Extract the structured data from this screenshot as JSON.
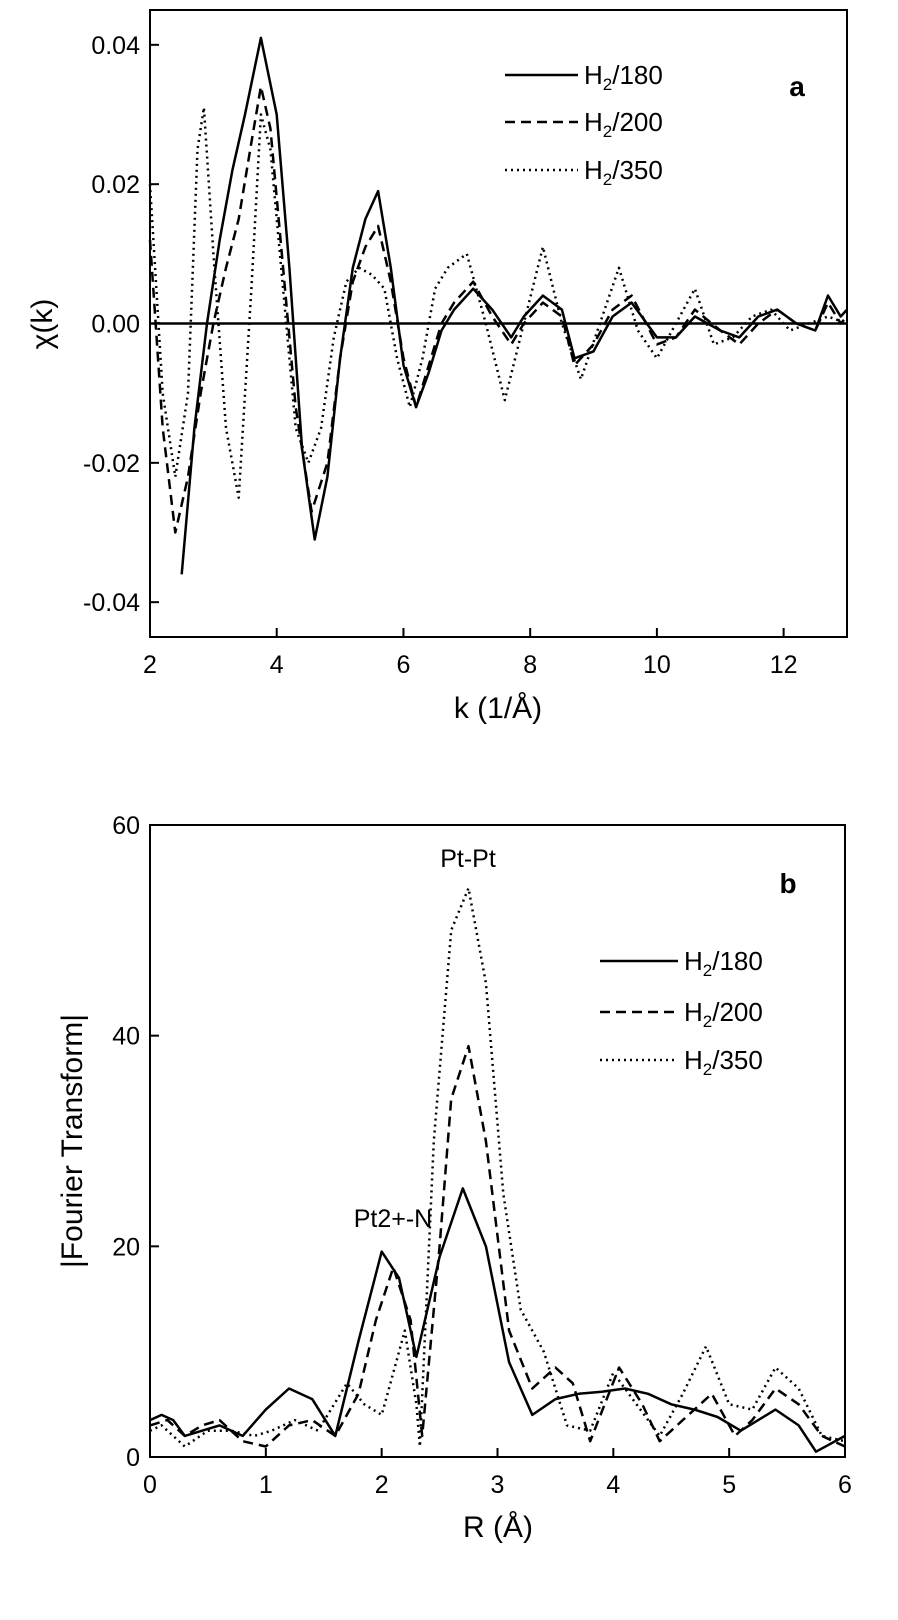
{
  "chart_data": [
    {
      "panel": "a",
      "type": "line",
      "xlabel": "k (1/Å)",
      "ylabel": "χ(k)",
      "xlim": [
        2,
        13
      ],
      "ylim": [
        -0.045,
        0.045
      ],
      "xticks": [
        2,
        4,
        6,
        8,
        10,
        12
      ],
      "xtick_labels": [
        "2",
        "4",
        "6",
        "8",
        "10",
        "12"
      ],
      "yticks": [
        -0.04,
        -0.02,
        0.0,
        0.02,
        0.04
      ],
      "ytick_labels": [
        "-0.04",
        "-0.02",
        "0.00",
        "0.02",
        "0.04"
      ],
      "legend": [
        "H2/180",
        "H2/200",
        "H2/350"
      ],
      "legend_placement": "top-right",
      "grid": false,
      "baseline": 0,
      "series": [
        {
          "name": "H2/180",
          "style": "solid",
          "x": [
            2.5,
            2.7,
            2.9,
            3.1,
            3.3,
            3.5,
            3.75,
            4.0,
            4.2,
            4.4,
            4.6,
            4.8,
            5.0,
            5.2,
            5.4,
            5.6,
            5.8,
            6.0,
            6.2,
            6.4,
            6.6,
            6.8,
            7.1,
            7.4,
            7.7,
            7.9,
            8.2,
            8.5,
            8.7,
            9.0,
            9.3,
            9.6,
            10.0,
            10.3,
            10.6,
            11.0,
            11.3,
            11.6,
            11.9,
            12.2,
            12.5,
            12.7,
            12.9,
            13.0
          ],
          "y": [
            -0.036,
            -0.015,
            0.0,
            0.012,
            0.022,
            0.03,
            0.041,
            0.03,
            0.008,
            -0.018,
            -0.031,
            -0.022,
            -0.005,
            0.008,
            0.015,
            0.019,
            0.008,
            -0.006,
            -0.012,
            -0.007,
            -0.001,
            0.002,
            0.005,
            0.002,
            -0.002,
            0.001,
            0.004,
            0.002,
            -0.005,
            -0.004,
            0.001,
            0.003,
            -0.002,
            -0.002,
            0.001,
            -0.001,
            -0.002,
            0.001,
            0.002,
            0.0,
            -0.001,
            0.004,
            0.001,
            0.002
          ]
        },
        {
          "name": "H2/200",
          "style": "dashed",
          "x": [
            2.0,
            2.2,
            2.4,
            2.6,
            2.8,
            3.0,
            3.2,
            3.4,
            3.6,
            3.75,
            3.9,
            4.1,
            4.3,
            4.55,
            4.8,
            5.0,
            5.2,
            5.4,
            5.6,
            5.8,
            6.0,
            6.2,
            6.4,
            6.6,
            6.8,
            7.1,
            7.4,
            7.7,
            7.9,
            8.2,
            8.5,
            8.7,
            9.0,
            9.3,
            9.6,
            10.0,
            10.3,
            10.6,
            11.0,
            11.3,
            11.6,
            11.9,
            12.2,
            12.5,
            12.7,
            12.9,
            13.0
          ],
          "y": [
            0.012,
            -0.015,
            -0.03,
            -0.022,
            -0.01,
            0.0,
            0.008,
            0.015,
            0.026,
            0.034,
            0.028,
            0.008,
            -0.012,
            -0.027,
            -0.02,
            -0.005,
            0.006,
            0.011,
            0.014,
            0.006,
            -0.005,
            -0.012,
            -0.006,
            0.0,
            0.003,
            0.006,
            0.001,
            -0.003,
            0.0,
            0.003,
            0.001,
            -0.006,
            -0.003,
            0.002,
            0.004,
            -0.003,
            -0.002,
            0.002,
            -0.001,
            -0.003,
            0.0,
            0.002,
            0.0,
            -0.001,
            0.003,
            0.0,
            0.001
          ]
        },
        {
          "name": "H2/350",
          "style": "dotted",
          "x": [
            2.0,
            2.2,
            2.4,
            2.6,
            2.75,
            2.85,
            3.0,
            3.2,
            3.4,
            3.6,
            3.75,
            3.9,
            4.1,
            4.3,
            4.5,
            4.7,
            4.9,
            5.1,
            5.3,
            5.5,
            5.7,
            5.9,
            6.1,
            6.3,
            6.5,
            6.7,
            7.0,
            7.3,
            7.6,
            7.9,
            8.2,
            8.5,
            8.8,
            9.1,
            9.4,
            9.7,
            10.0,
            10.3,
            10.6,
            10.9,
            11.2,
            11.5,
            11.8,
            12.1,
            12.4,
            12.7,
            13.0
          ],
          "y": [
            0.02,
            -0.01,
            -0.022,
            -0.01,
            0.025,
            0.031,
            0.01,
            -0.015,
            -0.025,
            0.005,
            0.03,
            0.025,
            0.005,
            -0.015,
            -0.02,
            -0.015,
            -0.002,
            0.006,
            0.008,
            0.007,
            0.005,
            -0.005,
            -0.012,
            -0.005,
            0.005,
            0.008,
            0.01,
            0.0,
            -0.011,
            0.0,
            0.011,
            0.0,
            -0.008,
            0.0,
            0.008,
            -0.001,
            -0.005,
            0.0,
            0.005,
            -0.003,
            -0.002,
            0.001,
            0.002,
            -0.001,
            0.0,
            0.001,
            0.0
          ]
        }
      ],
      "annotations": [
        "a"
      ]
    },
    {
      "panel": "b",
      "type": "line",
      "xlabel": "R (Å)",
      "ylabel": "|Fourier Transform|",
      "xlim": [
        0,
        6
      ],
      "ylim": [
        0,
        60
      ],
      "xticks": [
        0,
        1,
        2,
        3,
        4,
        5,
        6
      ],
      "xtick_labels": [
        "0",
        "1",
        "2",
        "3",
        "4",
        "5",
        "6"
      ],
      "yticks": [
        0,
        20,
        40,
        60
      ],
      "ytick_labels": [
        "0",
        "20",
        "40",
        "60"
      ],
      "legend": [
        "H2/180",
        "H2/200",
        "H2/350"
      ],
      "legend_placement": "right",
      "grid": false,
      "series": [
        {
          "name": "H2/180",
          "style": "solid",
          "x": [
            0.0,
            0.1,
            0.2,
            0.3,
            0.45,
            0.6,
            0.8,
            1.0,
            1.2,
            1.4,
            1.6,
            1.8,
            2.0,
            2.15,
            2.3,
            2.5,
            2.7,
            2.9,
            3.1,
            3.3,
            3.5,
            3.7,
            3.9,
            4.1,
            4.3,
            4.5,
            4.7,
            4.9,
            5.1,
            5.4,
            5.6,
            5.75,
            6.0
          ],
          "y": [
            3.5,
            4.0,
            3.5,
            2.0,
            2.5,
            3.0,
            2.0,
            4.5,
            6.5,
            5.5,
            2.0,
            11.0,
            19.5,
            17.0,
            9.5,
            19.0,
            25.5,
            20.0,
            9.0,
            4.0,
            5.5,
            6.0,
            6.2,
            6.5,
            6.0,
            5.0,
            4.5,
            3.8,
            2.5,
            4.5,
            3.0,
            0.5,
            2.0
          ]
        },
        {
          "name": "H2/200",
          "style": "dashed",
          "x": [
            0.0,
            0.15,
            0.3,
            0.45,
            0.6,
            0.8,
            1.0,
            1.2,
            1.4,
            1.6,
            1.8,
            1.95,
            2.1,
            2.25,
            2.35,
            2.5,
            2.6,
            2.75,
            2.9,
            3.1,
            3.3,
            3.5,
            3.65,
            3.8,
            4.05,
            4.25,
            4.4,
            4.6,
            4.85,
            5.05,
            5.2,
            5.4,
            5.6,
            5.8,
            6.0
          ],
          "y": [
            3.0,
            3.5,
            2.0,
            3.0,
            3.5,
            1.5,
            1.0,
            3.0,
            3.5,
            2.0,
            6.0,
            13.0,
            18.0,
            13.0,
            2.0,
            20.0,
            34.0,
            39.0,
            30.0,
            12.0,
            6.5,
            8.5,
            7.0,
            1.5,
            8.5,
            5.0,
            1.5,
            3.5,
            6.0,
            2.0,
            3.5,
            6.5,
            5.0,
            2.0,
            1.0
          ]
        },
        {
          "name": "H2/350",
          "style": "dotted",
          "x": [
            0.0,
            0.1,
            0.3,
            0.5,
            0.7,
            0.9,
            1.05,
            1.25,
            1.45,
            1.7,
            1.85,
            2.0,
            2.1,
            2.2,
            2.3,
            2.33,
            2.45,
            2.6,
            2.75,
            2.9,
            3.05,
            3.2,
            3.4,
            3.6,
            3.8,
            4.0,
            4.2,
            4.4,
            4.6,
            4.8,
            5.0,
            5.2,
            5.4,
            5.6,
            5.8,
            6.0
          ],
          "y": [
            2.5,
            3.0,
            1.0,
            2.5,
            2.5,
            2.0,
            2.5,
            3.5,
            2.5,
            7.0,
            5.0,
            4.0,
            8.0,
            12.0,
            5.0,
            1.0,
            30.0,
            50.0,
            54.0,
            45.0,
            25.0,
            14.0,
            10.0,
            3.0,
            2.5,
            8.0,
            5.0,
            2.0,
            6.0,
            10.5,
            5.0,
            4.5,
            8.5,
            6.5,
            2.0,
            1.5
          ]
        }
      ],
      "annotations": [
        "b",
        "Pt-Pt",
        "Pt2+-N"
      ]
    }
  ]
}
